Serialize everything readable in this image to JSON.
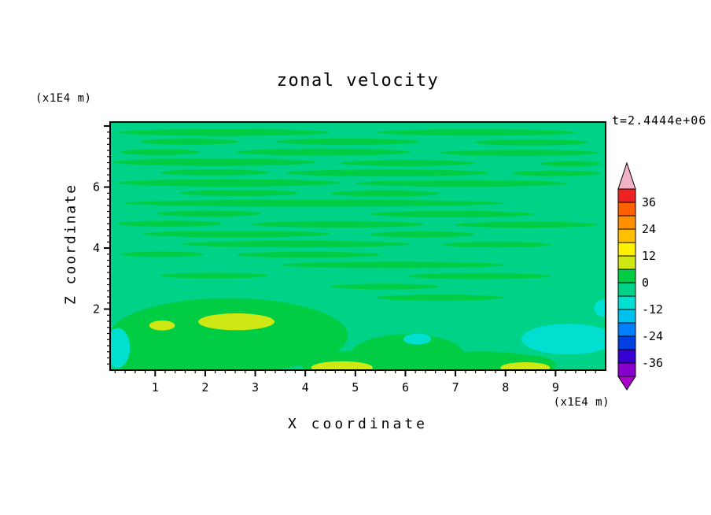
{
  "page": {
    "background": "#ffffff",
    "text_color": "#000000"
  },
  "chart_data": {
    "type": "heatmap",
    "title": "zonal velocity",
    "xlabel": "X coordinate",
    "ylabel": "Z coordinate",
    "x_unit": "(x1E4 m)",
    "y_unit": "(x1E4 m)",
    "time_label": "t=2.4444e+06",
    "xlim": [
      0.1,
      10.0
    ],
    "ylim": [
      0.0,
      8.13
    ],
    "x_ticks": [
      1,
      2,
      3,
      4,
      5,
      6,
      7,
      8,
      9
    ],
    "y_ticks": [
      2,
      4,
      6
    ],
    "x_minor_step": 0.2,
    "y_minor_step": 0.2,
    "grid": false,
    "legend_position": "right-colorbar",
    "colorbar": {
      "labels": [
        36,
        24,
        12,
        0,
        -12,
        -24,
        -36
      ],
      "band_size": 6,
      "over_color": "#f3b3c6",
      "under_color": "#aa00cc",
      "bands": [
        {
          "from": 36,
          "to": 42,
          "color": "#ee2222"
        },
        {
          "from": 30,
          "to": 36,
          "color": "#ff6000"
        },
        {
          "from": 24,
          "to": 30,
          "color": "#ff9000"
        },
        {
          "from": 18,
          "to": 24,
          "color": "#ffc000"
        },
        {
          "from": 12,
          "to": 18,
          "color": "#fff000"
        },
        {
          "from": 6,
          "to": 12,
          "color": "#cfe814"
        },
        {
          "from": 0,
          "to": 6,
          "color": "#00cc44"
        },
        {
          "from": -6,
          "to": 0,
          "color": "#00d287"
        },
        {
          "from": -12,
          "to": -6,
          "color": "#00dfd0"
        },
        {
          "from": -18,
          "to": -12,
          "color": "#00c0f0"
        },
        {
          "from": -24,
          "to": -18,
          "color": "#0080ff"
        },
        {
          "from": -30,
          "to": -24,
          "color": "#0040e0"
        },
        {
          "from": -36,
          "to": -30,
          "color": "#3800d0"
        },
        {
          "from": -42,
          "to": -36,
          "color": "#8800cc"
        }
      ]
    },
    "field": {
      "summary": "Field is mostly in the -6..0 band (teal-green) with thin horizontal 0..6 streaks in the upper 2/3; 0..6 blobs with +6..12 (yellow-green) patches near the bottom between x=1.5-5.5 and x=8-9; -6..-12 (cyan) patches at bottom-right, bottom-left edge and near x=6.2.",
      "base_band": [
        -6,
        0
      ],
      "base_color": "#00d287",
      "palette": {
        "green": "#00cc44",
        "yellow": "#cfe814",
        "cyan": "#00dfd0"
      },
      "features": [
        {
          "band": "green",
          "x": 0.23,
          "y": 0.042,
          "rx": 0.215,
          "ry": 0.014
        },
        {
          "band": "green",
          "x": 0.74,
          "y": 0.042,
          "rx": 0.2,
          "ry": 0.013
        },
        {
          "band": "green",
          "x": 0.16,
          "y": 0.079,
          "rx": 0.1,
          "ry": 0.012
        },
        {
          "band": "green",
          "x": 0.48,
          "y": 0.079,
          "rx": 0.145,
          "ry": 0.013
        },
        {
          "band": "green",
          "x": 0.85,
          "y": 0.082,
          "rx": 0.115,
          "ry": 0.012
        },
        {
          "band": "green",
          "x": 0.1,
          "y": 0.121,
          "rx": 0.08,
          "ry": 0.012
        },
        {
          "band": "green",
          "x": 0.43,
          "y": 0.121,
          "rx": 0.175,
          "ry": 0.014
        },
        {
          "band": "green",
          "x": 0.825,
          "y": 0.124,
          "rx": 0.16,
          "ry": 0.012
        },
        {
          "band": "green",
          "x": 0.21,
          "y": 0.162,
          "rx": 0.205,
          "ry": 0.015
        },
        {
          "band": "green",
          "x": 0.6,
          "y": 0.165,
          "rx": 0.135,
          "ry": 0.012
        },
        {
          "band": "green",
          "x": 0.93,
          "y": 0.168,
          "rx": 0.06,
          "ry": 0.011
        },
        {
          "band": "green",
          "x": 0.21,
          "y": 0.203,
          "rx": 0.11,
          "ry": 0.012
        },
        {
          "band": "green",
          "x": 0.56,
          "y": 0.205,
          "rx": 0.205,
          "ry": 0.014
        },
        {
          "band": "green",
          "x": 0.9,
          "y": 0.207,
          "rx": 0.09,
          "ry": 0.011
        },
        {
          "band": "green",
          "x": 0.24,
          "y": 0.245,
          "rx": 0.225,
          "ry": 0.015
        },
        {
          "band": "green",
          "x": 0.71,
          "y": 0.247,
          "rx": 0.215,
          "ry": 0.013
        },
        {
          "band": "green",
          "x": 0.26,
          "y": 0.286,
          "rx": 0.12,
          "ry": 0.012
        },
        {
          "band": "green",
          "x": 0.555,
          "y": 0.288,
          "rx": 0.11,
          "ry": 0.012
        },
        {
          "band": "green",
          "x": 0.41,
          "y": 0.327,
          "rx": 0.385,
          "ry": 0.014
        },
        {
          "band": "green",
          "x": 0.2,
          "y": 0.369,
          "rx": 0.105,
          "ry": 0.012
        },
        {
          "band": "green",
          "x": 0.69,
          "y": 0.371,
          "rx": 0.165,
          "ry": 0.013
        },
        {
          "band": "green",
          "x": 0.12,
          "y": 0.41,
          "rx": 0.105,
          "ry": 0.012
        },
        {
          "band": "green",
          "x": 0.46,
          "y": 0.412,
          "rx": 0.175,
          "ry": 0.013
        },
        {
          "band": "green",
          "x": 0.84,
          "y": 0.414,
          "rx": 0.145,
          "ry": 0.012
        },
        {
          "band": "green",
          "x": 0.255,
          "y": 0.451,
          "rx": 0.19,
          "ry": 0.013
        },
        {
          "band": "green",
          "x": 0.63,
          "y": 0.453,
          "rx": 0.105,
          "ry": 0.012
        },
        {
          "band": "green",
          "x": 0.375,
          "y": 0.492,
          "rx": 0.23,
          "ry": 0.013
        },
        {
          "band": "green",
          "x": 0.78,
          "y": 0.494,
          "rx": 0.11,
          "ry": 0.011
        },
        {
          "band": "green",
          "x": 0.105,
          "y": 0.533,
          "rx": 0.085,
          "ry": 0.011
        },
        {
          "band": "green",
          "x": 0.4,
          "y": 0.535,
          "rx": 0.145,
          "ry": 0.012
        },
        {
          "band": "green",
          "x": 0.57,
          "y": 0.576,
          "rx": 0.225,
          "ry": 0.013
        },
        {
          "band": "green",
          "x": 0.21,
          "y": 0.619,
          "rx": 0.11,
          "ry": 0.011
        },
        {
          "band": "green",
          "x": 0.745,
          "y": 0.621,
          "rx": 0.145,
          "ry": 0.012
        },
        {
          "band": "green",
          "x": 0.555,
          "y": 0.663,
          "rx": 0.11,
          "ry": 0.011
        },
        {
          "band": "green",
          "x": 0.665,
          "y": 0.708,
          "rx": 0.13,
          "ry": 0.012
        },
        {
          "band": "green",
          "x": 0.24,
          "y": 0.86,
          "rx": 0.24,
          "ry": 0.15
        },
        {
          "band": "green",
          "x": 0.1,
          "y": 0.95,
          "rx": 0.1,
          "ry": 0.07
        },
        {
          "band": "green",
          "x": 0.6,
          "y": 0.94,
          "rx": 0.115,
          "ry": 0.085
        },
        {
          "band": "green",
          "x": 0.75,
          "y": 0.975,
          "rx": 0.13,
          "ry": 0.05
        },
        {
          "band": "green",
          "x": 0.47,
          "y": 0.975,
          "rx": 0.085,
          "ry": 0.05
        },
        {
          "band": "green",
          "x": 0.84,
          "y": 0.98,
          "rx": 0.06,
          "ry": 0.04
        },
        {
          "band": "yellow",
          "x": 0.255,
          "y": 0.805,
          "rx": 0.077,
          "ry": 0.034
        },
        {
          "band": "yellow",
          "x": 0.105,
          "y": 0.82,
          "rx": 0.026,
          "ry": 0.02
        },
        {
          "band": "yellow",
          "x": 0.468,
          "y": 0.99,
          "rx": 0.062,
          "ry": 0.026
        },
        {
          "band": "yellow",
          "x": 0.838,
          "y": 0.99,
          "rx": 0.05,
          "ry": 0.022
        },
        {
          "band": "cyan",
          "x": 0.925,
          "y": 0.875,
          "rx": 0.095,
          "ry": 0.062
        },
        {
          "band": "cyan",
          "x": 0.015,
          "y": 0.91,
          "rx": 0.025,
          "ry": 0.08
        },
        {
          "band": "cyan",
          "x": 0.62,
          "y": 0.875,
          "rx": 0.028,
          "ry": 0.022
        },
        {
          "band": "cyan",
          "x": 0.995,
          "y": 0.75,
          "rx": 0.018,
          "ry": 0.035
        }
      ]
    }
  }
}
